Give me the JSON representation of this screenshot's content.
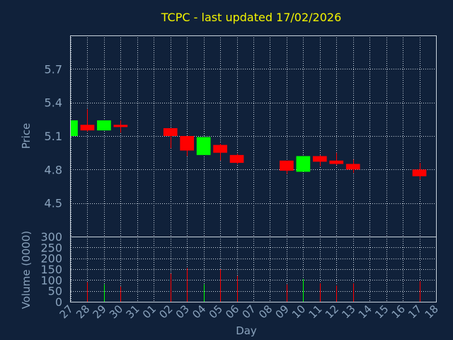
{
  "chart_data": {
    "type": "candlestick",
    "title": "TCPC - last updated 17/02/2026",
    "xlabel": "Day",
    "ylabel_price": "Price",
    "ylabel_volume": "Volume (0000)",
    "x_ticks": [
      "27",
      "28",
      "29",
      "30",
      "31",
      "01",
      "02",
      "03",
      "04",
      "05",
      "06",
      "07",
      "08",
      "09",
      "10",
      "11",
      "12",
      "13",
      "14",
      "15",
      "16",
      "17",
      "18"
    ],
    "price_ylim": [
      4.2,
      6.0
    ],
    "price_ticks": [
      "4.5",
      "4.8",
      "5.1",
      "5.4",
      "5.7"
    ],
    "volume_ylim": [
      0,
      300
    ],
    "volume_ticks": [
      "0",
      "50",
      "100",
      "150",
      "200",
      "250",
      "300"
    ],
    "grid": true,
    "colors": {
      "up": "#00ff00",
      "down": "#ff0000",
      "title": "#f5f500",
      "label": "#8aa3bd",
      "background": "#10213a"
    },
    "candles": [
      {
        "day": "27",
        "open": 5.1,
        "high": 5.24,
        "low": 5.1,
        "close": 5.24,
        "volume": 0
      },
      {
        "day": "28",
        "open": 5.2,
        "high": 5.34,
        "low": 5.14,
        "close": 5.15,
        "volume": 90
      },
      {
        "day": "29",
        "open": 5.15,
        "high": 5.24,
        "low": 5.15,
        "close": 5.24,
        "volume": 80
      },
      {
        "day": "30",
        "open": 5.2,
        "high": 5.24,
        "low": 5.13,
        "close": 5.18,
        "volume": 70
      },
      {
        "day": "02",
        "open": 5.17,
        "high": 5.17,
        "low": 4.99,
        "close": 5.1,
        "volume": 130
      },
      {
        "day": "03",
        "open": 5.1,
        "high": 5.1,
        "low": 4.92,
        "close": 4.97,
        "volume": 155
      },
      {
        "day": "04",
        "open": 4.93,
        "high": 5.09,
        "low": 4.93,
        "close": 5.09,
        "volume": 80
      },
      {
        "day": "05",
        "open": 5.02,
        "high": 5.03,
        "low": 4.88,
        "close": 4.95,
        "volume": 150
      },
      {
        "day": "06",
        "open": 4.93,
        "high": 4.94,
        "low": 4.85,
        "close": 4.86,
        "volume": 120
      },
      {
        "day": "09",
        "open": 4.88,
        "high": 4.88,
        "low": 4.76,
        "close": 4.79,
        "volume": 80
      },
      {
        "day": "10",
        "open": 4.78,
        "high": 4.92,
        "low": 4.78,
        "close": 4.92,
        "volume": 105
      },
      {
        "day": "11",
        "open": 4.92,
        "high": 4.93,
        "low": 4.83,
        "close": 4.87,
        "volume": 85
      },
      {
        "day": "12",
        "open": 4.88,
        "high": 4.95,
        "low": 4.84,
        "close": 4.85,
        "volume": 75
      },
      {
        "day": "13",
        "open": 4.85,
        "high": 4.89,
        "low": 4.77,
        "close": 4.8,
        "volume": 85
      },
      {
        "day": "17",
        "open": 4.8,
        "high": 4.86,
        "low": 4.71,
        "close": 4.74,
        "volume": 95
      }
    ]
  }
}
